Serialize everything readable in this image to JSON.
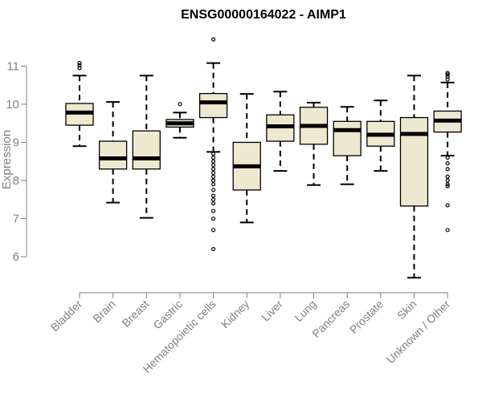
{
  "chart_data": {
    "type": "boxplot",
    "title": "ENSG00000164022 - AIMP1",
    "xlabel": "",
    "ylabel": "Expression",
    "ylim": [
      5.35,
      11.85
    ],
    "yticks": [
      6,
      7,
      8,
      9,
      10,
      11
    ],
    "box_color": "#ede8d0",
    "categories": [
      "Bladder",
      "Brain",
      "Breast",
      "Gastric",
      "Hematopoietic cells",
      "Kidney",
      "Liver",
      "Lung",
      "Pancreas",
      "Prostate",
      "Skin",
      "Unknown / Other"
    ],
    "boxes": [
      {
        "category": "Bladder",
        "whisker_low": 8.9,
        "q1": 9.45,
        "median": 9.78,
        "q3": 10.02,
        "whisker_high": 10.75,
        "outliers": [
          10.95,
          11.02,
          11.08
        ]
      },
      {
        "category": "Brain",
        "whisker_low": 7.42,
        "q1": 8.3,
        "median": 8.58,
        "q3": 9.03,
        "whisker_high": 10.06,
        "outliers": []
      },
      {
        "category": "Breast",
        "whisker_low": 7.02,
        "q1": 8.3,
        "median": 8.58,
        "q3": 9.3,
        "whisker_high": 10.75,
        "outliers": []
      },
      {
        "category": "Gastric",
        "whisker_low": 9.12,
        "q1": 9.4,
        "median": 9.5,
        "q3": 9.6,
        "whisker_high": 9.78,
        "outliers": [
          10.0
        ]
      },
      {
        "category": "Hematopoietic cells",
        "whisker_low": 8.75,
        "q1": 9.65,
        "median": 10.05,
        "q3": 10.28,
        "whisker_high": 11.08,
        "outliers": [
          11.7,
          8.7,
          8.6,
          8.5,
          8.4,
          8.3,
          8.2,
          8.1,
          8.0,
          7.9,
          7.75,
          7.6,
          7.5,
          7.4,
          7.2,
          7.0,
          6.7,
          6.2
        ]
      },
      {
        "category": "Kidney",
        "whisker_low": 6.9,
        "q1": 7.75,
        "median": 8.37,
        "q3": 9.0,
        "whisker_high": 10.27,
        "outliers": []
      },
      {
        "category": "Liver",
        "whisker_low": 8.25,
        "q1": 9.03,
        "median": 9.42,
        "q3": 9.72,
        "whisker_high": 10.33,
        "outliers": []
      },
      {
        "category": "Lung",
        "whisker_low": 7.88,
        "q1": 8.95,
        "median": 9.43,
        "q3": 9.92,
        "whisker_high": 10.04,
        "outliers": []
      },
      {
        "category": "Pancreas",
        "whisker_low": 7.9,
        "q1": 8.65,
        "median": 9.32,
        "q3": 9.55,
        "whisker_high": 9.93,
        "outliers": []
      },
      {
        "category": "Prostate",
        "whisker_low": 8.25,
        "q1": 8.9,
        "median": 9.2,
        "q3": 9.55,
        "whisker_high": 10.1,
        "outliers": []
      },
      {
        "category": "Skin",
        "whisker_low": 5.45,
        "q1": 7.33,
        "median": 9.22,
        "q3": 9.65,
        "whisker_high": 10.75,
        "outliers": []
      },
      {
        "category": "Unknown / Other",
        "whisker_low": 8.65,
        "q1": 9.27,
        "median": 9.57,
        "q3": 9.82,
        "whisker_high": 10.57,
        "outliers": [
          10.65,
          10.72,
          10.78,
          10.82,
          8.6,
          8.45,
          8.3,
          8.1,
          8.0,
          7.9,
          7.85,
          7.35,
          6.7
        ]
      }
    ]
  }
}
